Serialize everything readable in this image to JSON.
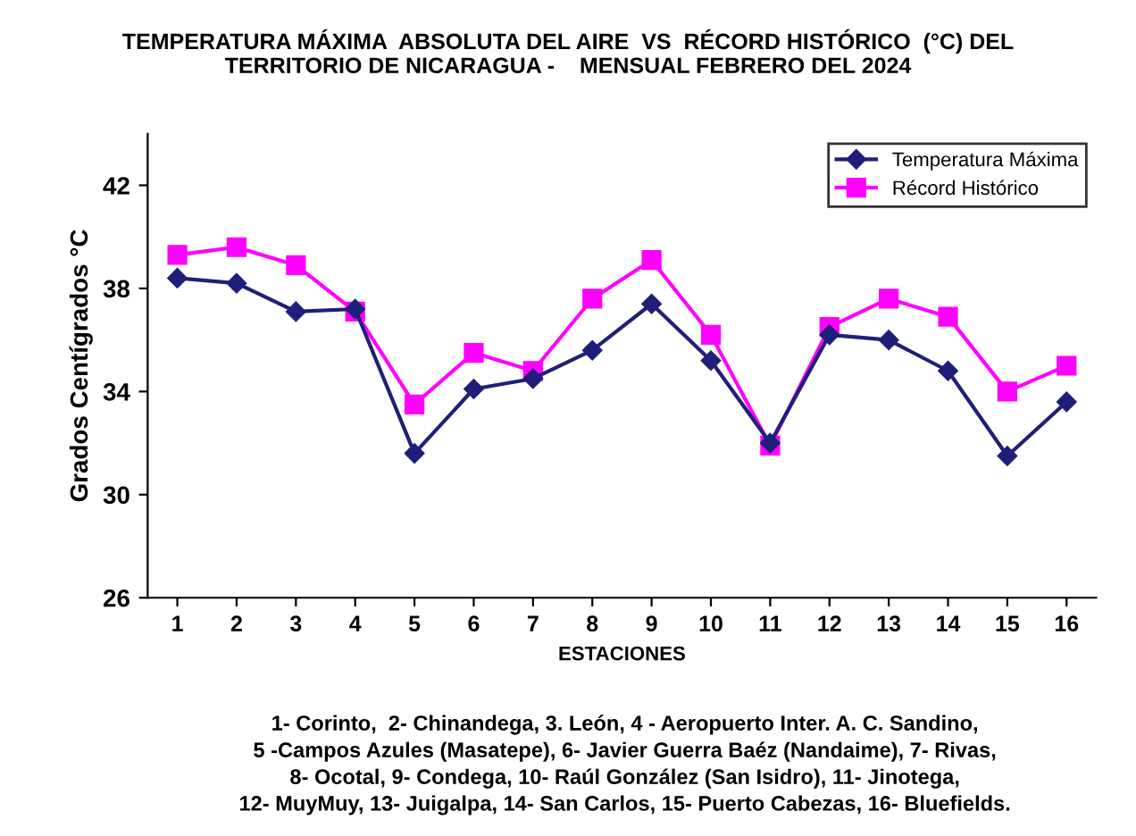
{
  "chart_data": {
    "type": "line",
    "title": "TEMPERATURA MÁXIMA  ABSOLUTA DEL AIRE  VS  RÉCORD HISTÓRICO  (°C) DEL\nTERRITORIO DE NICARAGUA -    MENSUAL FEBRERO DEL 2024",
    "xlabel": "ESTACIONES",
    "ylabel": "Grados Centígrados °C",
    "categories": [
      "1",
      "2",
      "3",
      "4",
      "5",
      "6",
      "7",
      "8",
      "9",
      "10",
      "11",
      "12",
      "13",
      "14",
      "15",
      "16"
    ],
    "series": [
      {
        "name": "Temperatura Máxima",
        "color": "#1f1f7a",
        "marker": "diamond",
        "values": [
          38.4,
          38.2,
          37.1,
          37.2,
          31.6,
          34.1,
          34.5,
          35.6,
          37.4,
          35.2,
          32.0,
          36.2,
          36.0,
          34.8,
          31.5,
          33.6
        ]
      },
      {
        "name": "Récord Histórico",
        "color": "#ff00ff",
        "marker": "square",
        "values": [
          39.3,
          39.6,
          38.9,
          37.1,
          33.5,
          35.5,
          34.8,
          37.6,
          39.1,
          36.2,
          31.9,
          36.5,
          37.6,
          36.9,
          34.0,
          35.0
        ]
      }
    ],
    "ylim": [
      26,
      44
    ],
    "yticks": [
      26,
      30,
      34,
      38,
      42
    ],
    "grid": false,
    "legend": "top right",
    "annotations": [
      "1- Corinto,  2- Chinandega, 3. León, 4 - Aeropuerto Inter. A. C. Sandino,\n5 -Campos Azules (Masatepe), 6- Javier Guerra Baéz (Nandaime), 7- Rivas,\n8- Ocotal, 9- Condega, 10- Raúl González (San Isidro), 11- Jinotega,\n12- MuyMuy, 13- Juigalpa, 14- San Carlos, 15- Puerto Cabezas, 16- Bluefields."
    ]
  }
}
